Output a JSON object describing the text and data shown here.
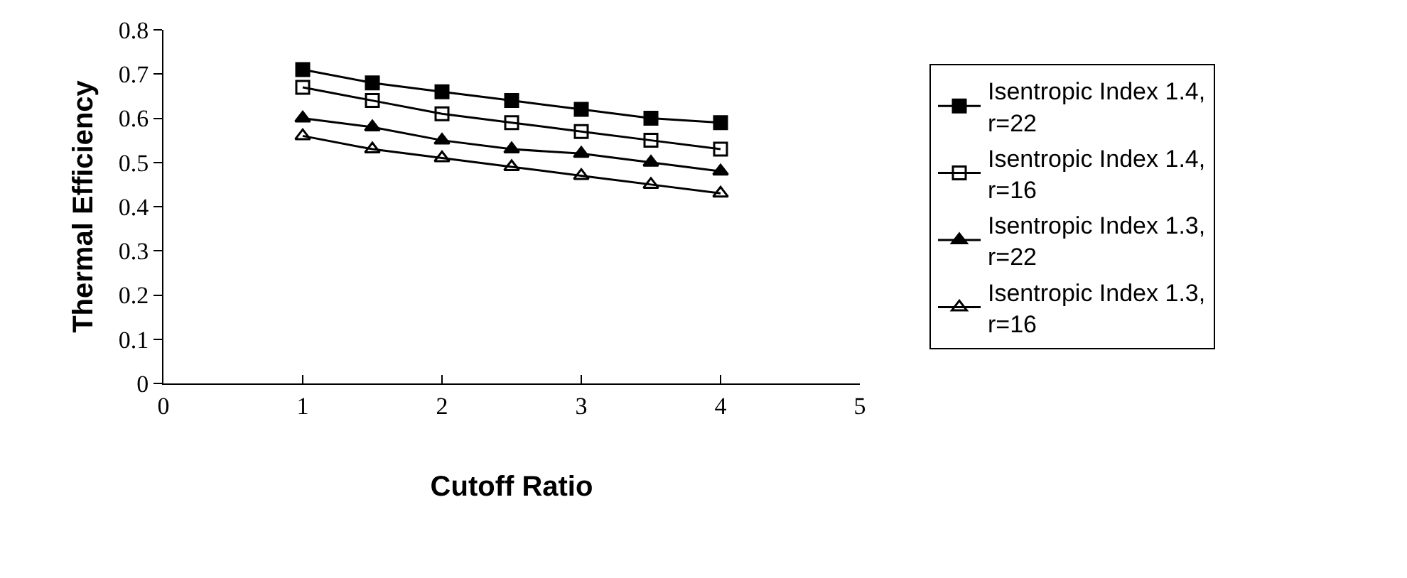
{
  "chart_data": {
    "type": "line",
    "xlabel": "Cutoff Ratio",
    "ylabel": "Thermal Efficiency",
    "x": [
      1,
      1.5,
      2,
      2.5,
      3,
      3.5,
      4
    ],
    "xlim": [
      0,
      5
    ],
    "xticks": [
      0,
      1,
      2,
      3,
      4,
      5
    ],
    "ylim": [
      0,
      0.8
    ],
    "yticks": [
      0,
      0.1,
      0.2,
      0.3,
      0.4,
      0.5,
      0.6,
      0.7,
      0.8
    ],
    "grid": false,
    "legend": "right",
    "line_style": "solid",
    "series": [
      {
        "name": "Isentropic Index 1.4, r=22",
        "color": "#000000",
        "marker": "square",
        "values": [
          0.71,
          0.68,
          0.66,
          0.64,
          0.62,
          0.6,
          0.59
        ]
      },
      {
        "name": "Isentropic Index 1.4, r=16",
        "color": "#000000",
        "marker": "square",
        "values": [
          0.67,
          0.64,
          0.61,
          0.59,
          0.57,
          0.55,
          0.53
        ]
      },
      {
        "name": "Isentropic Index 1.3, r=22",
        "color": "#000000",
        "marker": "triangle",
        "values": [
          0.6,
          0.58,
          0.55,
          0.53,
          0.52,
          0.5,
          0.48
        ]
      },
      {
        "name": "Isentropic Index 1.3, r=16",
        "color": "#000000",
        "marker": "triangle",
        "values": [
          0.56,
          0.53,
          0.51,
          0.49,
          0.47,
          0.45,
          0.43
        ]
      }
    ]
  }
}
